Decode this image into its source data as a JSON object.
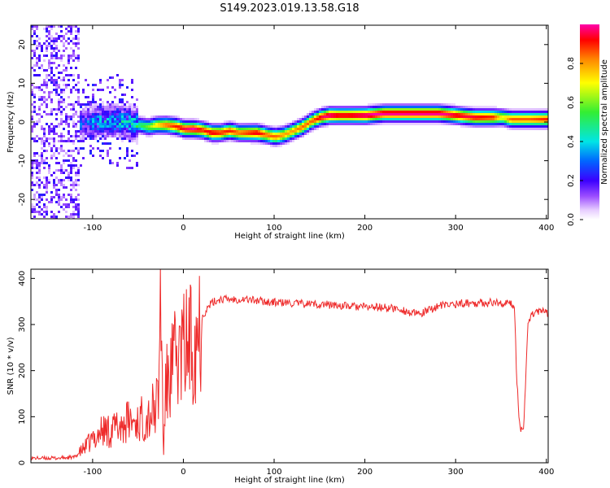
{
  "title": "S149.2023.019.13.58.G18",
  "chart_data": [
    {
      "type": "heatmap",
      "xlabel": "Height of straight line (km)",
      "ylabel": "Frequency (Hz)",
      "xlim": [
        -168,
        402
      ],
      "ylim": [
        -25,
        25
      ],
      "xticks": [
        -100,
        0,
        100,
        200,
        300,
        400
      ],
      "yticks": [
        -20,
        -10,
        0,
        10,
        20
      ],
      "colorbar": {
        "label": "Normalized spectral amplitude",
        "range": [
          0,
          1
        ],
        "ticks": [
          "0.0",
          "0.2",
          "0.4",
          "0.6",
          "0.8"
        ]
      },
      "ridge": {
        "x": [
          -110,
          -90,
          -75,
          -60,
          -50,
          -40,
          -30,
          -20,
          -10,
          0,
          10,
          20,
          30,
          40,
          50,
          60,
          70,
          80,
          90,
          100,
          110,
          120,
          130,
          140,
          150,
          160,
          170,
          180,
          200,
          220,
          240,
          260,
          280,
          300,
          320,
          340,
          350,
          360,
          380,
          400
        ],
        "freq": [
          0,
          0.5,
          0.5,
          0,
          -0.5,
          -1,
          -0.5,
          -0.5,
          -0.8,
          -1.5,
          -1.5,
          -1.8,
          -2.5,
          -2.5,
          -2,
          -2.5,
          -2.5,
          -2.5,
          -3,
          -3.5,
          -3,
          -2,
          -1,
          0.5,
          1.5,
          2,
          2,
          2,
          2,
          2.5,
          2.5,
          2.5,
          2.5,
          2,
          1.5,
          1.5,
          1.5,
          1,
          1,
          1
        ],
        "peak": [
          0.3,
          0.4,
          0.4,
          0.45,
          0.5,
          0.6,
          0.75,
          0.85,
          0.9,
          0.95,
          1,
          0.9,
          0.95,
          0.9,
          0.9,
          0.85,
          0.9,
          0.95,
          0.85,
          0.85,
          0.8,
          0.8,
          0.85,
          0.85,
          0.95,
          1,
          0.95,
          0.95,
          1,
          1,
          1,
          1,
          1,
          0.95,
          0.95,
          0.9,
          0.7,
          0.85,
          0.85,
          0.9
        ]
      }
    },
    {
      "type": "line",
      "xlabel": "Height of straight line (km)",
      "ylabel": "SNR (10 * v/v)",
      "xlim": [
        -168,
        402
      ],
      "ylim": [
        0,
        420
      ],
      "xticks": [
        -100,
        0,
        100,
        200,
        300,
        400
      ],
      "yticks": [
        0,
        100,
        200,
        300,
        400
      ],
      "series": [
        {
          "color": "#ee2a2a",
          "x": [
            -168,
            -140,
            -120,
            -110,
            -100,
            -90,
            -80,
            -70,
            -60,
            -50,
            -40,
            -35,
            -30,
            -27,
            -25,
            -22,
            -20,
            -18,
            -15,
            -10,
            -5,
            0,
            5,
            10,
            15,
            20,
            25,
            30,
            35,
            40,
            50,
            60,
            70,
            80,
            90,
            100,
            110,
            120,
            130,
            140,
            150,
            160,
            180,
            200,
            220,
            240,
            250,
            260,
            270,
            280,
            290,
            300,
            320,
            340,
            360,
            365,
            367,
            370,
            372,
            375,
            380,
            385,
            390,
            400
          ],
          "y": [
            10,
            10,
            12,
            30,
            50,
            70,
            70,
            80,
            90,
            90,
            100,
            110,
            120,
            150,
            410,
            5,
            140,
            170,
            190,
            215,
            230,
            245,
            255,
            265,
            290,
            315,
            330,
            345,
            350,
            355,
            355,
            355,
            355,
            352,
            350,
            348,
            347,
            346,
            345,
            345,
            344,
            343,
            340,
            338,
            337,
            333,
            325,
            322,
            330,
            340,
            342,
            345,
            347,
            348,
            345,
            340,
            200,
            90,
            75,
            80,
            310,
            325,
            330,
            325
          ]
        }
      ]
    }
  ]
}
